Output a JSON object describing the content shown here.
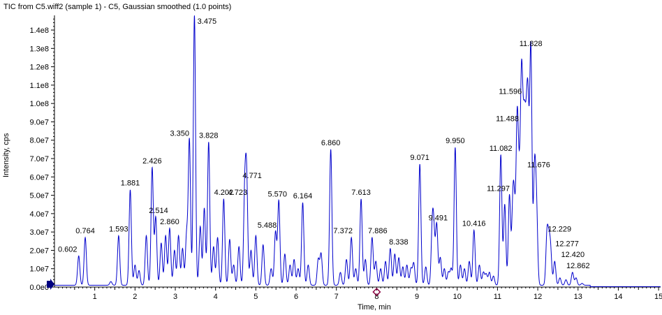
{
  "title": "TIC from C5.wiff2 (sample 1) - C5, Gaussian smoothed (1.0 points)",
  "colors": {
    "trace": "#0000cc",
    "axis": "#000000",
    "marker": "#000080",
    "cursor": "#8b0040"
  },
  "chart_data": {
    "type": "line",
    "title": "TIC from C5.wiff2 (sample 1) - C5, Gaussian smoothed (1.0 points)",
    "xlabel": "Time, min",
    "ylabel": "Intensity, cps",
    "xlim": [
      0,
      15.05
    ],
    "ylim": [
      0,
      148000000.0
    ],
    "x_ticks": [
      1,
      2,
      3,
      4,
      5,
      6,
      7,
      8,
      9,
      10,
      11,
      12,
      13,
      14,
      15
    ],
    "y_ticks": [
      {
        "v": 0,
        "label": "0.0e0"
      },
      {
        "v": 10000000.0,
        "label": "1.0e7"
      },
      {
        "v": 20000000.0,
        "label": "2.0e7"
      },
      {
        "v": 30000000.0,
        "label": "3.0e7"
      },
      {
        "v": 40000000.0,
        "label": "4.0e7"
      },
      {
        "v": 50000000.0,
        "label": "5.0e7"
      },
      {
        "v": 60000000.0,
        "label": "6.0e7"
      },
      {
        "v": 70000000.0,
        "label": "7.0e7"
      },
      {
        "v": 80000000.0,
        "label": "8.0e7"
      },
      {
        "v": 90000000.0,
        "label": "9.0e7"
      },
      {
        "v": 100000000.0,
        "label": "1.0e8"
      },
      {
        "v": 110000000.0,
        "label": "1.1e8"
      },
      {
        "v": 120000000.0,
        "label": "1.2e8"
      },
      {
        "v": 130000000.0,
        "label": "1.3e8"
      },
      {
        "v": 140000000.0,
        "label": "1.4e8"
      }
    ],
    "baseline": 1000000.0,
    "peaks": [
      {
        "label": "0.602",
        "x": 0.602,
        "y": 17000000.0
      },
      {
        "label": "0.764",
        "x": 0.764,
        "y": 27000000.0
      },
      {
        "label": "1.593",
        "x": 1.593,
        "y": 28000000.0
      },
      {
        "label": "1.881",
        "x": 1.881,
        "y": 53000000.0
      },
      {
        "label": "2.426",
        "x": 2.426,
        "y": 65000000.0
      },
      {
        "label": "2.514",
        "x": 2.514,
        "y": 38000000.0
      },
      {
        "label": "2.860",
        "x": 2.86,
        "y": 32000000.0
      },
      {
        "label": "3.350",
        "x": 3.35,
        "y": 80000000.0
      },
      {
        "label": "3.475",
        "x": 3.475,
        "y": 148000000.0
      },
      {
        "label": "3.828",
        "x": 3.828,
        "y": 79000000.0
      },
      {
        "label": "4.202",
        "x": 4.202,
        "y": 48000000.0
      },
      {
        "label": "4.723",
        "x": 4.723,
        "y": 48000000.0
      },
      {
        "label": "4.771",
        "x": 4.771,
        "y": 57000000.0
      },
      {
        "label": "5.488",
        "x": 5.488,
        "y": 30000000.0
      },
      {
        "label": "5.570",
        "x": 5.57,
        "y": 47000000.0
      },
      {
        "label": "6.164",
        "x": 6.164,
        "y": 46000000.0
      },
      {
        "label": "6.860",
        "x": 6.86,
        "y": 75000000.0
      },
      {
        "label": "7.372",
        "x": 7.372,
        "y": 27000000.0
      },
      {
        "label": "7.613",
        "x": 7.613,
        "y": 48000000.0
      },
      {
        "label": "7.886",
        "x": 7.886,
        "y": 27000000.0
      },
      {
        "label": "8.338",
        "x": 8.338,
        "y": 21000000.0
      },
      {
        "label": "9.071",
        "x": 9.071,
        "y": 67000000.0
      },
      {
        "label": "9.491",
        "x": 9.491,
        "y": 34000000.0
      },
      {
        "label": "9.950",
        "x": 9.95,
        "y": 76000000.0
      },
      {
        "label": "10.416",
        "x": 10.416,
        "y": 31000000.0
      },
      {
        "label": "11.082",
        "x": 11.082,
        "y": 72000000.0
      },
      {
        "label": "11.297",
        "x": 11.297,
        "y": 50000000.0
      },
      {
        "label": "11.488",
        "x": 11.488,
        "y": 88000000.0
      },
      {
        "label": "11.596",
        "x": 11.596,
        "y": 103000000.0
      },
      {
        "label": "11.676",
        "x": 11.676,
        "y": 63000000.0
      },
      {
        "label": "11.828",
        "x": 11.828,
        "y": 129000000.0
      },
      {
        "label": "12.229",
        "x": 12.229,
        "y": 28000000.0
      },
      {
        "label": "12.277",
        "x": 12.277,
        "y": 20000000.0
      },
      {
        "label": "12.420",
        "x": 12.42,
        "y": 14000000.0
      },
      {
        "label": "12.862",
        "x": 12.862,
        "y": 8000000.0
      }
    ],
    "minor_peaks": [
      {
        "x": 1.4,
        "y": 3000000.0
      },
      {
        "x": 2.0,
        "y": 12000000.0
      },
      {
        "x": 2.1,
        "y": 9000000.0
      },
      {
        "x": 2.28,
        "y": 28000000.0
      },
      {
        "x": 2.65,
        "y": 24000000.0
      },
      {
        "x": 2.76,
        "y": 28000000.0
      },
      {
        "x": 2.98,
        "y": 20000000.0
      },
      {
        "x": 3.08,
        "y": 28000000.0
      },
      {
        "x": 3.18,
        "y": 21000000.0
      },
      {
        "x": 3.28,
        "y": 28000000.0
      },
      {
        "x": 3.62,
        "y": 33000000.0
      },
      {
        "x": 3.72,
        "y": 43000000.0
      },
      {
        "x": 3.95,
        "y": 22000000.0
      },
      {
        "x": 4.05,
        "y": 27000000.0
      },
      {
        "x": 4.35,
        "y": 26000000.0
      },
      {
        "x": 4.45,
        "y": 12000000.0
      },
      {
        "x": 4.58,
        "y": 22000000.0
      },
      {
        "x": 4.88,
        "y": 20000000.0
      },
      {
        "x": 5.0,
        "y": 28000000.0
      },
      {
        "x": 5.18,
        "y": 23000000.0
      },
      {
        "x": 5.38,
        "y": 10000000.0
      },
      {
        "x": 5.72,
        "y": 18000000.0
      },
      {
        "x": 5.85,
        "y": 12000000.0
      },
      {
        "x": 5.95,
        "y": 15000000.0
      },
      {
        "x": 6.05,
        "y": 10000000.0
      },
      {
        "x": 6.3,
        "y": 12000000.0
      },
      {
        "x": 6.55,
        "y": 15000000.0
      },
      {
        "x": 6.62,
        "y": 18000000.0
      },
      {
        "x": 7.1,
        "y": 8000000.0
      },
      {
        "x": 7.25,
        "y": 15000000.0
      },
      {
        "x": 7.48,
        "y": 10000000.0
      },
      {
        "x": 7.72,
        "y": 15000000.0
      },
      {
        "x": 7.98,
        "y": 14000000.0
      },
      {
        "x": 8.1,
        "y": 10000000.0
      },
      {
        "x": 8.22,
        "y": 14000000.0
      },
      {
        "x": 8.45,
        "y": 18000000.0
      },
      {
        "x": 8.55,
        "y": 16000000.0
      },
      {
        "x": 8.65,
        "y": 11000000.0
      },
      {
        "x": 8.75,
        "y": 12000000.0
      },
      {
        "x": 8.85,
        "y": 10000000.0
      },
      {
        "x": 8.92,
        "y": 13000000.0
      },
      {
        "x": 9.22,
        "y": 11000000.0
      },
      {
        "x": 9.38,
        "y": 30000000.0
      },
      {
        "x": 9.42,
        "y": 26000000.0
      },
      {
        "x": 9.58,
        "y": 16000000.0
      },
      {
        "x": 9.68,
        "y": 10000000.0
      },
      {
        "x": 9.78,
        "y": 8000000.0
      },
      {
        "x": 9.85,
        "y": 10000000.0
      },
      {
        "x": 10.08,
        "y": 12000000.0
      },
      {
        "x": 10.18,
        "y": 10000000.0
      },
      {
        "x": 10.3,
        "y": 14000000.0
      },
      {
        "x": 10.55,
        "y": 12000000.0
      },
      {
        "x": 10.65,
        "y": 8000000.0
      },
      {
        "x": 10.72,
        "y": 7000000.0
      },
      {
        "x": 10.8,
        "y": 8000000.0
      },
      {
        "x": 10.9,
        "y": 6000000.0
      },
      {
        "x": 11.18,
        "y": 45000000.0
      },
      {
        "x": 11.38,
        "y": 40000000.0
      },
      {
        "x": 11.42,
        "y": 35000000.0
      },
      {
        "x": 11.54,
        "y": 45000000.0
      },
      {
        "x": 11.64,
        "y": 46000000.0
      },
      {
        "x": 11.72,
        "y": 58000000.0
      },
      {
        "x": 11.76,
        "y": 82000000.0
      },
      {
        "x": 11.92,
        "y": 62000000.0
      },
      {
        "x": 11.97,
        "y": 40000000.0
      },
      {
        "x": 12.32,
        "y": 18000000.0
      },
      {
        "x": 12.55,
        "y": 5000000.0
      },
      {
        "x": 12.7,
        "y": 4000000.0
      },
      {
        "x": 12.95,
        "y": 5000000.0
      },
      {
        "x": 13.1,
        "y": 2000000.0
      }
    ],
    "label_nudges": {
      "0.602": -16,
      "2.514": 4,
      "2.860": 0,
      "3.350": -14,
      "3.475": 18,
      "4.723": -10,
      "4.771": 8,
      "5.488": -12,
      "5.570": -2,
      "6.164": 0,
      "7.372": -12,
      "7.886": 8,
      "8.338": 12,
      "9.491": 2,
      "10.416": 0,
      "11.297": -16,
      "11.488": -14,
      "11.596": -16,
      "11.676": 20,
      "11.828": 0,
      "12.229": 18,
      "12.277": 26,
      "12.420": 26,
      "12.862": 8
    },
    "markers": [
      {
        "name": "y-axis-threshold-marker",
        "y": 1500000.0
      },
      {
        "name": "x-axis-cursor-marker",
        "x": 8.0
      }
    ]
  }
}
